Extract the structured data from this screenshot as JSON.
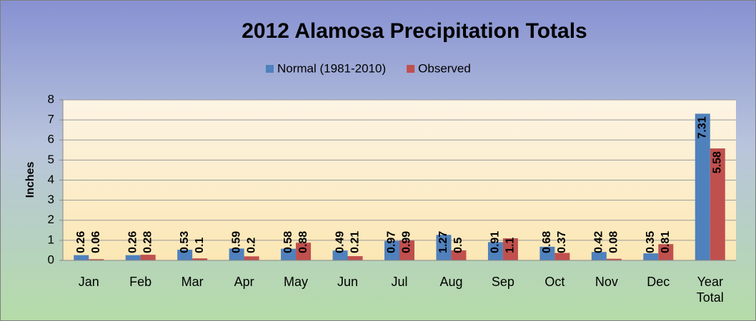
{
  "chart_data": {
    "type": "bar",
    "title": "2012 Alamosa Precipitation Totals",
    "y_label": "Inches",
    "categories": [
      "Jan",
      "Feb",
      "Mar",
      "Apr",
      "May",
      "Jun",
      "Jul",
      "Aug",
      "Sep",
      "Oct",
      "Nov",
      "Dec",
      "Year Total"
    ],
    "series": [
      {
        "name": "Normal (1981-2010)",
        "color": "#4f81bd",
        "values": [
          0.26,
          0.26,
          0.53,
          0.59,
          0.58,
          0.49,
          0.97,
          1.27,
          0.91,
          0.68,
          0.42,
          0.35,
          7.31
        ]
      },
      {
        "name": "Observed",
        "color": "#c0504d",
        "values": [
          0.06,
          0.28,
          0.1,
          0.2,
          0.88,
          0.21,
          0.99,
          0.5,
          1.1,
          0.37,
          0.08,
          0.81,
          5.58
        ]
      }
    ],
    "ylim": [
      0,
      8
    ],
    "yticks": [
      0,
      1,
      2,
      3,
      4,
      5,
      6,
      7,
      8
    ],
    "grid": true,
    "legend": "top"
  }
}
